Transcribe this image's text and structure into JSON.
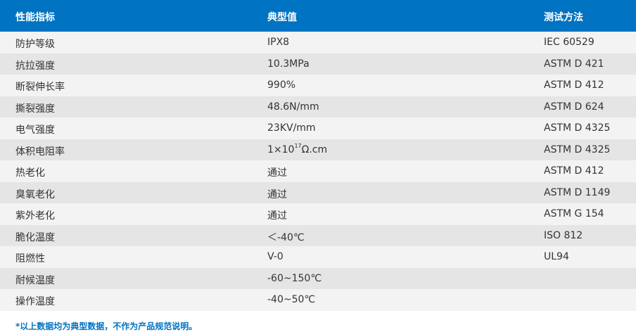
{
  "header": {
    "col1": "性能指标",
    "col2": "典型值",
    "col3": "测试方法"
  },
  "rows": [
    {
      "name": "防护等级",
      "value": "IPX8",
      "method": "IEC 60529"
    },
    {
      "name": "抗拉强度",
      "value": "10.3MPa",
      "method": "ASTM D 421"
    },
    {
      "name": "断裂伸长率",
      "value": "990%",
      "method": "ASTM D 412"
    },
    {
      "name": "撕裂强度",
      "value": "48.6N/mm",
      "method": "ASTM D 624"
    },
    {
      "name": "电气强度",
      "value": "23KV/mm",
      "method": "ASTM D 4325"
    },
    {
      "name": "体积电阻率",
      "value": "1×10",
      "sup": "17",
      "unit": "Ω.cm",
      "method": "ASTM D 4325"
    },
    {
      "name": "热老化",
      "value": "通过",
      "method": "ASTM D 412"
    },
    {
      "name": "臭氧老化",
      "value": "通过",
      "method": "ASTM D 1149"
    },
    {
      "name": "紫外老化",
      "value": "通过",
      "method": "ASTM G 154"
    },
    {
      "name": "脆化温度",
      "value": "＜-40℃",
      "method": "ISO 812"
    },
    {
      "name": "阻燃性",
      "value": "V-0",
      "method": "UL94"
    },
    {
      "name": "耐候温度",
      "value": "-60~150℃",
      "method": ""
    },
    {
      "name": "操作温度",
      "value": "-40~50℃",
      "method": ""
    }
  ],
  "footnote": "*以上数据均为典型数据，不作为产品规范说明。",
  "colors": {
    "header_bg": "#0073c2",
    "row_light": "#f3f3f3",
    "row_dark": "#e5e5e5"
  }
}
